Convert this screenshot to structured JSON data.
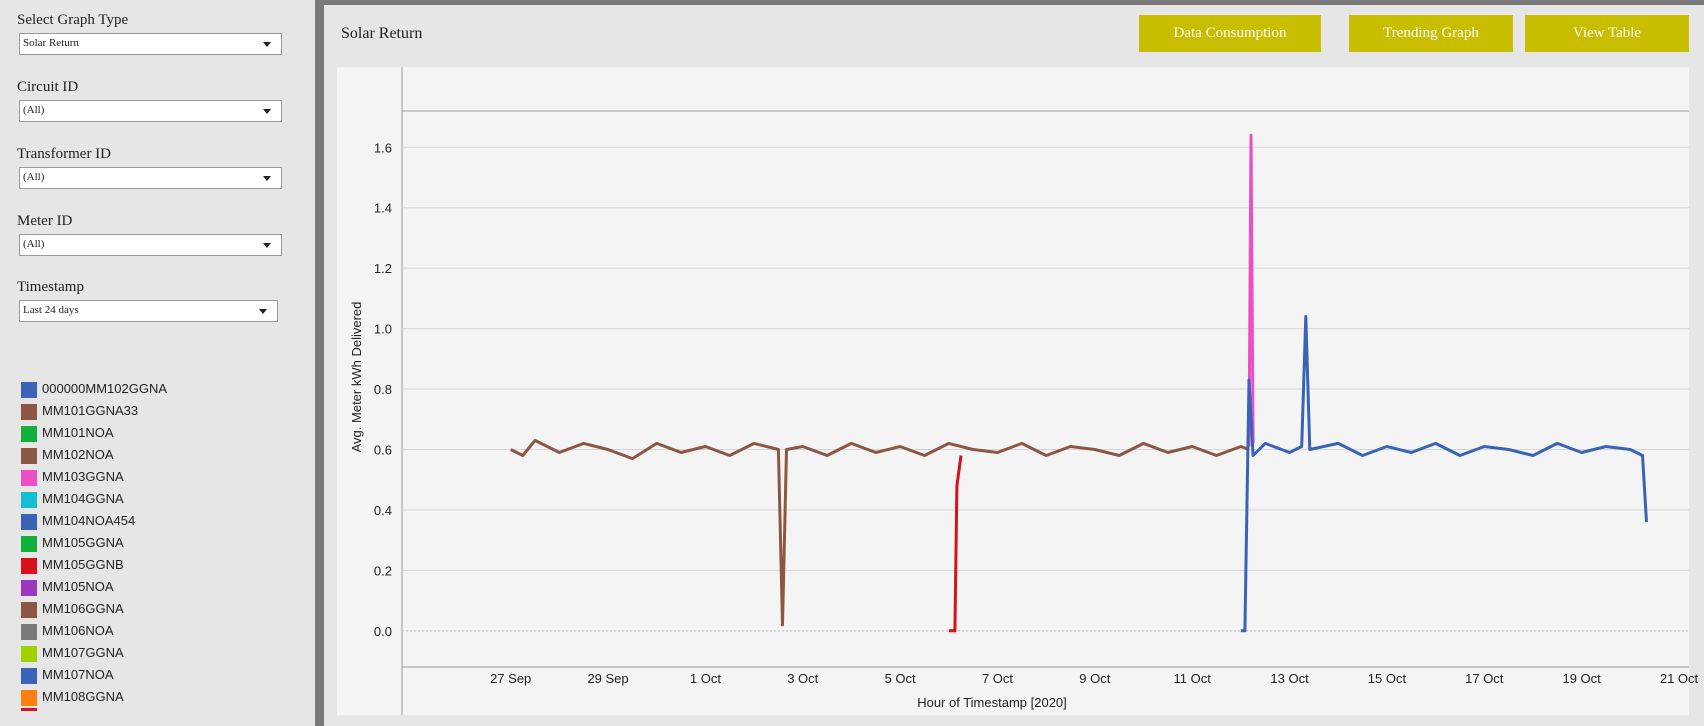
{
  "filters": {
    "graph_type": {
      "label": "Select Graph Type",
      "value": "Solar Return"
    },
    "circuit_id": {
      "label": "Circuit ID",
      "value": "(All)"
    },
    "transformer_id": {
      "label": "Transformer ID",
      "value": "(All)"
    },
    "meter_id": {
      "label": "Meter ID",
      "value": "(All)"
    },
    "timestamp": {
      "label": "Timestamp",
      "value": "Last 24 days"
    }
  },
  "legend": [
    {
      "label": "000000MM102GGNA",
      "color": "#3a63b5"
    },
    {
      "label": "MM101GGNA33",
      "color": "#8b5744"
    },
    {
      "label": "MM101NOA",
      "color": "#11b03a"
    },
    {
      "label": "MM102NOA",
      "color": "#8b5744"
    },
    {
      "label": "MM103GGNA",
      "color": "#ec4fc4"
    },
    {
      "label": "MM104GGNA",
      "color": "#14bfd4"
    },
    {
      "label": "MM104NOA454",
      "color": "#3a63b5"
    },
    {
      "label": "MM105GGNA",
      "color": "#11b03a"
    },
    {
      "label": "MM105GGNB",
      "color": "#d8101a"
    },
    {
      "label": "MM105NOA",
      "color": "#9b37c0"
    },
    {
      "label": "MM106GGNA",
      "color": "#8b5744"
    },
    {
      "label": "MM106NOA",
      "color": "#7a7a7a"
    },
    {
      "label": "MM107GGNA",
      "color": "#9fd000"
    },
    {
      "label": "MM107NOA",
      "color": "#3a63b5"
    },
    {
      "label": "MM108GGNA",
      "color": "#ff7f0e"
    }
  ],
  "header": {
    "title": "Solar Return",
    "buttons": {
      "data_consumption": "Data Consumption",
      "trending_graph": "Trending Graph",
      "view_table": "View Table"
    }
  },
  "chart_data": {
    "type": "line",
    "xlabel": "Hour of Timestamp [2020]",
    "ylabel": "Avg. Meter kWh Delivered",
    "ylim": [
      -0.08,
      1.72
    ],
    "xlim": [
      "2020-09-26",
      "2020-10-21"
    ],
    "y_ticks": [
      0.0,
      0.2,
      0.4,
      0.6,
      0.8,
      1.0,
      1.2,
      1.4,
      1.6
    ],
    "x_ticks": [
      {
        "date": "2020-09-27",
        "label": "27 Sep"
      },
      {
        "date": "2020-09-29",
        "label": "29 Sep"
      },
      {
        "date": "2020-10-01",
        "label": "1 Oct"
      },
      {
        "date": "2020-10-03",
        "label": "3 Oct"
      },
      {
        "date": "2020-10-05",
        "label": "5 Oct"
      },
      {
        "date": "2020-10-07",
        "label": "7 Oct"
      },
      {
        "date": "2020-10-09",
        "label": "9 Oct"
      },
      {
        "date": "2020-10-11",
        "label": "11 Oct"
      },
      {
        "date": "2020-10-13",
        "label": "13 Oct"
      },
      {
        "date": "2020-10-15",
        "label": "15 Oct"
      },
      {
        "date": "2020-10-17",
        "label": "17 Oct"
      },
      {
        "date": "2020-10-19",
        "label": "19 Oct"
      },
      {
        "date": "2020-10-21",
        "label": "21 Oct"
      }
    ],
    "grid": true,
    "series": [
      {
        "name": "MM106GGNA",
        "color": "#8b5744",
        "points": [
          [
            "2020-09-27 00:00",
            0.6
          ],
          [
            "2020-09-27 06:00",
            0.58
          ],
          [
            "2020-09-27 12:00",
            0.63
          ],
          [
            "2020-09-28 00:00",
            0.59
          ],
          [
            "2020-09-28 12:00",
            0.62
          ],
          [
            "2020-09-29 00:00",
            0.6
          ],
          [
            "2020-09-29 12:00",
            0.57
          ],
          [
            "2020-09-30 00:00",
            0.62
          ],
          [
            "2020-09-30 12:00",
            0.59
          ],
          [
            "2020-10-01 00:00",
            0.61
          ],
          [
            "2020-10-01 12:00",
            0.58
          ],
          [
            "2020-10-02 00:00",
            0.62
          ],
          [
            "2020-10-02 12:00",
            0.6
          ],
          [
            "2020-10-02 14:00",
            0.02
          ],
          [
            "2020-10-02 16:00",
            0.6
          ],
          [
            "2020-10-03 00:00",
            0.61
          ],
          [
            "2020-10-03 12:00",
            0.58
          ],
          [
            "2020-10-04 00:00",
            0.62
          ],
          [
            "2020-10-04 12:00",
            0.59
          ],
          [
            "2020-10-05 00:00",
            0.61
          ],
          [
            "2020-10-05 12:00",
            0.58
          ],
          [
            "2020-10-06 00:00",
            0.62
          ],
          [
            "2020-10-06 12:00",
            0.6
          ],
          [
            "2020-10-07 00:00",
            0.59
          ],
          [
            "2020-10-07 12:00",
            0.62
          ],
          [
            "2020-10-08 00:00",
            0.58
          ],
          [
            "2020-10-08 12:00",
            0.61
          ],
          [
            "2020-10-09 00:00",
            0.6
          ],
          [
            "2020-10-09 12:00",
            0.58
          ],
          [
            "2020-10-10 00:00",
            0.62
          ],
          [
            "2020-10-10 12:00",
            0.59
          ],
          [
            "2020-10-11 00:00",
            0.61
          ],
          [
            "2020-10-11 12:00",
            0.58
          ],
          [
            "2020-10-12 00:00",
            0.61
          ],
          [
            "2020-10-12 04:00",
            0.6
          ]
        ]
      },
      {
        "name": "MM105GGNB",
        "color": "#d8101a",
        "points": [
          [
            "2020-10-06 00:00",
            0.0
          ],
          [
            "2020-10-06 03:00",
            0.0
          ],
          [
            "2020-10-06 04:00",
            0.48
          ],
          [
            "2020-10-06 06:00",
            0.58
          ]
        ]
      },
      {
        "name": "MM103GGNA",
        "color": "#ec4fc4",
        "points": [
          [
            "2020-10-12 04:00",
            0.61
          ],
          [
            "2020-10-12 05:00",
            1.64
          ],
          [
            "2020-10-12 06:00",
            0.62
          ]
        ]
      },
      {
        "name": "MM107NOA",
        "color": "#3a63b5",
        "points": [
          [
            "2020-10-12 00:00",
            0.0
          ],
          [
            "2020-10-12 02:00",
            0.0
          ],
          [
            "2020-10-12 04:00",
            0.83
          ],
          [
            "2020-10-12 06:00",
            0.58
          ],
          [
            "2020-10-12 12:00",
            0.62
          ],
          [
            "2020-10-13 00:00",
            0.59
          ],
          [
            "2020-10-13 06:00",
            0.61
          ],
          [
            "2020-10-13 08:00",
            1.04
          ],
          [
            "2020-10-13 10:00",
            0.6
          ],
          [
            "2020-10-14 00:00",
            0.62
          ],
          [
            "2020-10-14 12:00",
            0.58
          ],
          [
            "2020-10-15 00:00",
            0.61
          ],
          [
            "2020-10-15 12:00",
            0.59
          ],
          [
            "2020-10-16 00:00",
            0.62
          ],
          [
            "2020-10-16 12:00",
            0.58
          ],
          [
            "2020-10-17 00:00",
            0.61
          ],
          [
            "2020-10-17 12:00",
            0.6
          ],
          [
            "2020-10-18 00:00",
            0.58
          ],
          [
            "2020-10-18 12:00",
            0.62
          ],
          [
            "2020-10-19 00:00",
            0.59
          ],
          [
            "2020-10-19 12:00",
            0.61
          ],
          [
            "2020-10-20 00:00",
            0.6
          ],
          [
            "2020-10-20 06:00",
            0.58
          ],
          [
            "2020-10-20 08:00",
            0.36
          ]
        ]
      }
    ]
  }
}
